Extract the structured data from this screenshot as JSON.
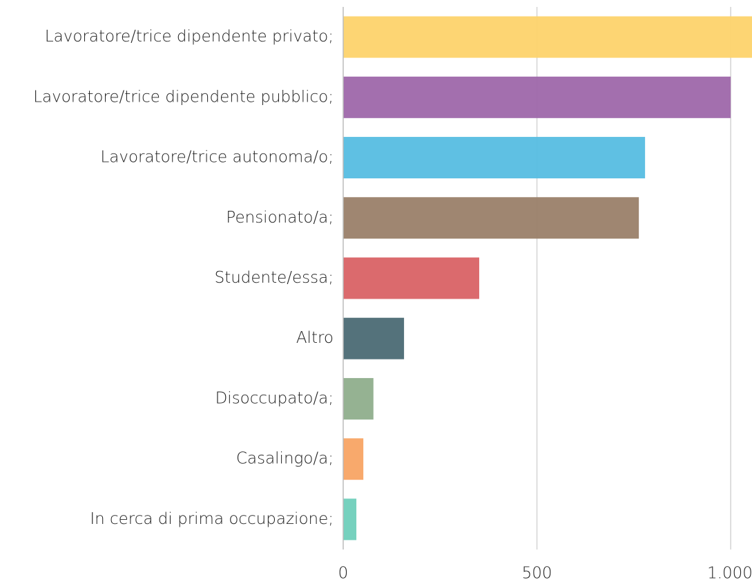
{
  "chart_data": {
    "type": "bar",
    "orientation": "horizontal",
    "categories": [
      "Lavoratore/trice dipendente privato;",
      "Lavoratore/trice dipendente pubblico;",
      "Lavoratore/trice autonoma/o;",
      "Pensionato/a;",
      "Studente/essa;",
      "Altro",
      "Disoccupato/a;",
      "Casalingo/a;",
      "In cerca di prima occupazione;"
    ],
    "values": [
      1070,
      1000,
      779,
      763,
      351,
      157,
      78,
      52,
      34
    ],
    "colors": [
      "#fdd36b",
      "#9e67aa",
      "#56bde2",
      "#9a7f69",
      "#d96265",
      "#4b6a74",
      "#8fae8c",
      "#f8a464",
      "#6fcfbb"
    ],
    "xlim": [
      0,
      1055
    ],
    "xticks": [
      0,
      500,
      {
        "value": 1000,
        "label": "1.000"
      }
    ],
    "grid": true
  }
}
